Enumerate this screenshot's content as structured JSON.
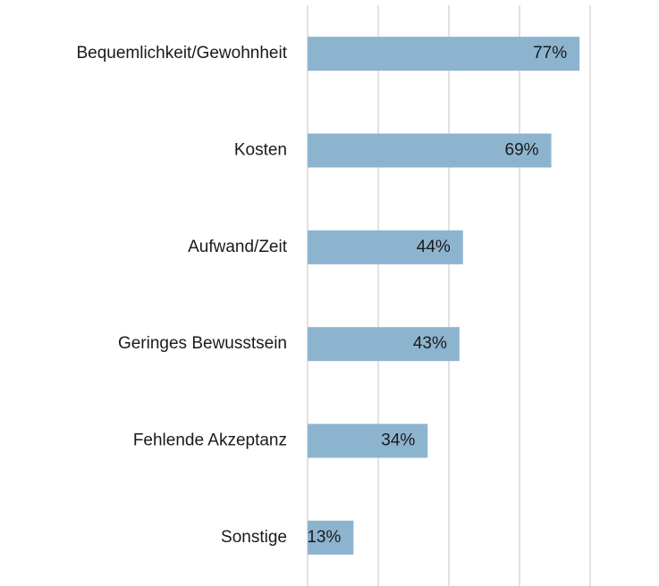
{
  "chart_data": {
    "type": "hbar",
    "categories": [
      "Bequemlichkeit/Gewohnheit",
      "Kosten",
      "Aufwand/Zeit",
      "Geringes Bewusstsein",
      "Fehlende Akzeptanz",
      "Sonstige"
    ],
    "values": [
      77,
      69,
      44,
      43,
      34,
      13
    ],
    "value_labels": [
      "77%",
      "69%",
      "44%",
      "43%",
      "34%",
      "13%"
    ],
    "color": "#8db4cf",
    "xlim": [
      0,
      80
    ],
    "xticks": [
      0,
      20,
      40,
      60,
      80
    ],
    "grid": true
  }
}
